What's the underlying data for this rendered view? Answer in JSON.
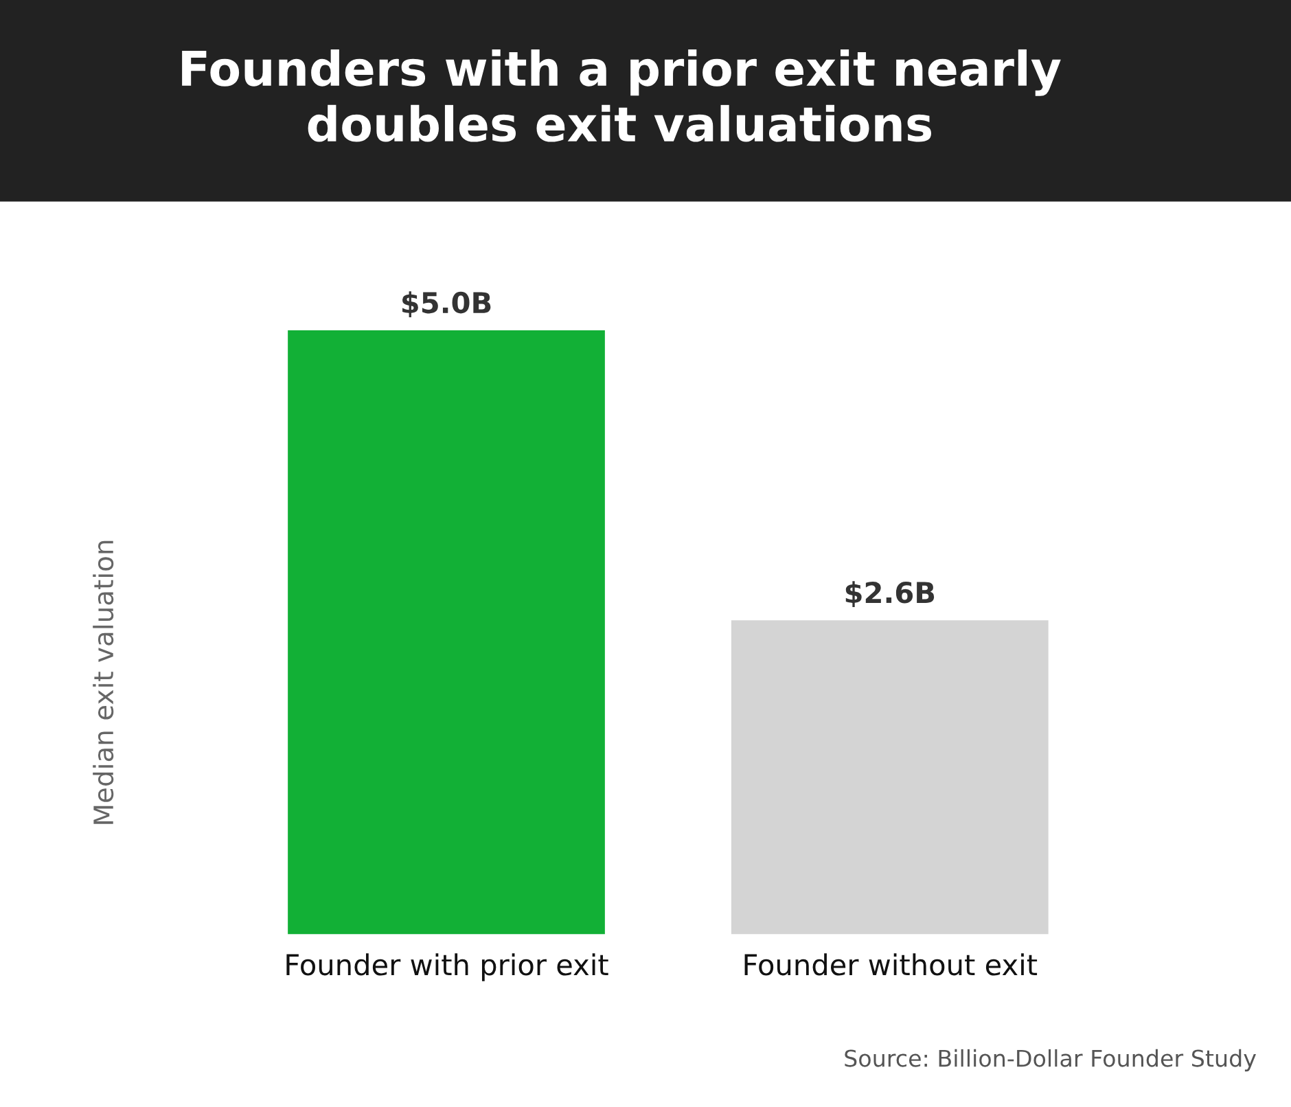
{
  "chart_data": {
    "type": "bar",
    "title": "Founders with a prior exit nearly\ndoubles exit valuations",
    "ylabel": "Median exit valuation",
    "categories": [
      "Founder with prior exit",
      "Founder without exit"
    ],
    "values": [
      5.0,
      2.6
    ],
    "colors": [
      "#12b036",
      "#d4d4d4"
    ],
    "value_labels": [
      "$5.0B",
      "$2.6B"
    ],
    "grid": false,
    "legend": false,
    "tick_labels": "x",
    "annotations": [
      "Source: Billion-Dollar Founder Study"
    ]
  }
}
